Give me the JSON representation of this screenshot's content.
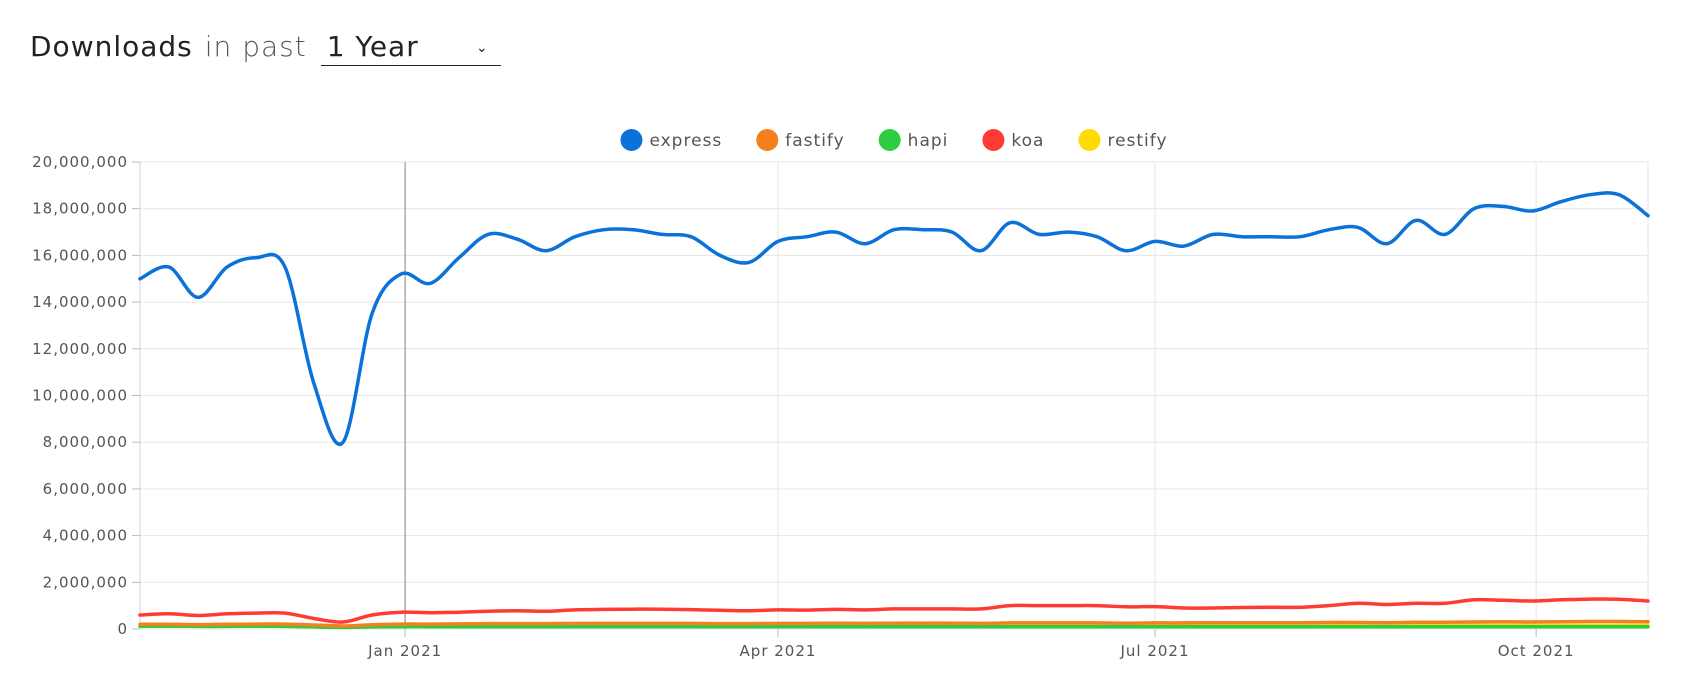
{
  "header": {
    "title": "Downloads",
    "subtitle": "in past",
    "period": "1 Year"
  },
  "chart_data": {
    "type": "line",
    "x_unit": "week",
    "x": [
      "2020-10-29",
      "2020-11-05",
      "2020-11-12",
      "2020-11-19",
      "2020-11-26",
      "2020-12-03",
      "2020-12-10",
      "2020-12-17",
      "2020-12-24",
      "2020-12-31",
      "2021-01-07",
      "2021-01-14",
      "2021-01-21",
      "2021-01-28",
      "2021-02-04",
      "2021-02-11",
      "2021-02-18",
      "2021-02-25",
      "2021-03-04",
      "2021-03-11",
      "2021-03-18",
      "2021-03-25",
      "2021-04-01",
      "2021-04-08",
      "2021-04-15",
      "2021-04-22",
      "2021-04-29",
      "2021-05-06",
      "2021-05-13",
      "2021-05-20",
      "2021-05-27",
      "2021-06-03",
      "2021-06-10",
      "2021-06-17",
      "2021-06-24",
      "2021-07-01",
      "2021-07-08",
      "2021-07-15",
      "2021-07-22",
      "2021-07-29",
      "2021-08-05",
      "2021-08-12",
      "2021-08-19",
      "2021-08-26",
      "2021-09-02",
      "2021-09-09",
      "2021-09-16",
      "2021-09-23",
      "2021-09-30",
      "2021-10-07",
      "2021-10-14",
      "2021-10-21",
      "2021-10-28"
    ],
    "series": [
      {
        "name": "express",
        "color": "#0b72d9",
        "values": [
          15000000,
          15500000,
          14200000,
          15500000,
          15900000,
          15500000,
          10500000,
          8000000,
          13500000,
          15200000,
          14800000,
          15900000,
          16900000,
          16700000,
          16200000,
          16800000,
          17100000,
          17100000,
          16900000,
          16800000,
          16000000,
          15700000,
          16600000,
          16800000,
          17000000,
          16500000,
          17100000,
          17100000,
          17000000,
          16200000,
          17400000,
          16900000,
          17000000,
          16800000,
          16200000,
          16600000,
          16400000,
          16900000,
          16800000,
          16800000,
          16800000,
          17100000,
          17200000,
          16500000,
          17500000,
          16900000,
          18000000,
          18100000,
          17900000,
          18300000,
          18600000,
          18600000,
          17700000
        ]
      },
      {
        "name": "fastify",
        "color": "#f5801e",
        "values": [
          200000,
          200000,
          190000,
          200000,
          210000,
          210000,
          170000,
          130000,
          180000,
          210000,
          210000,
          220000,
          230000,
          230000,
          230000,
          240000,
          240000,
          240000,
          240000,
          240000,
          230000,
          230000,
          240000,
          240000,
          250000,
          240000,
          250000,
          250000,
          250000,
          240000,
          260000,
          260000,
          260000,
          260000,
          250000,
          260000,
          260000,
          270000,
          270000,
          270000,
          270000,
          280000,
          280000,
          270000,
          290000,
          290000,
          300000,
          310000,
          300000,
          310000,
          320000,
          320000,
          310000
        ]
      },
      {
        "name": "hapi",
        "color": "#2ecc40",
        "values": [
          120000,
          120000,
          110000,
          110000,
          120000,
          110000,
          90000,
          70000,
          90000,
          100000,
          100000,
          100000,
          100000,
          100000,
          100000,
          100000,
          100000,
          100000,
          100000,
          100000,
          100000,
          100000,
          100000,
          100000,
          100000,
          100000,
          100000,
          100000,
          100000,
          100000,
          100000,
          100000,
          100000,
          100000,
          100000,
          100000,
          100000,
          100000,
          100000,
          100000,
          100000,
          100000,
          100000,
          100000,
          100000,
          100000,
          100000,
          100000,
          100000,
          100000,
          100000,
          100000,
          100000
        ]
      },
      {
        "name": "koa",
        "color": "#ff3c33",
        "values": [
          600000,
          650000,
          580000,
          650000,
          680000,
          680000,
          450000,
          300000,
          600000,
          720000,
          700000,
          720000,
          760000,
          780000,
          760000,
          820000,
          840000,
          850000,
          850000,
          830000,
          800000,
          780000,
          820000,
          810000,
          840000,
          820000,
          860000,
          860000,
          860000,
          860000,
          1000000,
          1000000,
          1000000,
          1000000,
          950000,
          960000,
          900000,
          900000,
          920000,
          930000,
          930000,
          1000000,
          1100000,
          1050000,
          1100000,
          1100000,
          1250000,
          1230000,
          1200000,
          1250000,
          1280000,
          1270000,
          1200000
        ]
      },
      {
        "name": "restify",
        "color": "#ffdc00",
        "values": [
          130000,
          130000,
          120000,
          130000,
          130000,
          130000,
          100000,
          80000,
          110000,
          120000,
          120000,
          130000,
          130000,
          130000,
          130000,
          130000,
          130000,
          130000,
          130000,
          130000,
          130000,
          130000,
          130000,
          130000,
          130000,
          130000,
          130000,
          130000,
          130000,
          130000,
          140000,
          140000,
          140000,
          140000,
          140000,
          140000,
          140000,
          140000,
          140000,
          140000,
          140000,
          140000,
          140000,
          140000,
          140000,
          140000,
          150000,
          150000,
          150000,
          150000,
          150000,
          150000,
          150000
        ]
      }
    ],
    "y_ticks": [
      0,
      2000000,
      4000000,
      6000000,
      8000000,
      10000000,
      12000000,
      14000000,
      16000000,
      18000000,
      20000000
    ],
    "y_tick_labels": [
      "0",
      "2,000,000",
      "4,000,000",
      "6,000,000",
      "8,000,000",
      "10,000,000",
      "12,000,000",
      "14,000,000",
      "16,000,000",
      "18,000,000",
      "20,000,000"
    ],
    "ylim": [
      0,
      20000000
    ],
    "x_ticks": [
      {
        "date": "2021-01-01",
        "label": "Jan 2021"
      },
      {
        "date": "2021-04-01",
        "label": "Apr 2021"
      },
      {
        "date": "2021-07-01",
        "label": "Jul 2021"
      },
      {
        "date": "2021-10-01",
        "label": "Oct 2021"
      }
    ],
    "highlight_date": "2021-01-01",
    "legend_position": "top-center",
    "grid": true
  }
}
